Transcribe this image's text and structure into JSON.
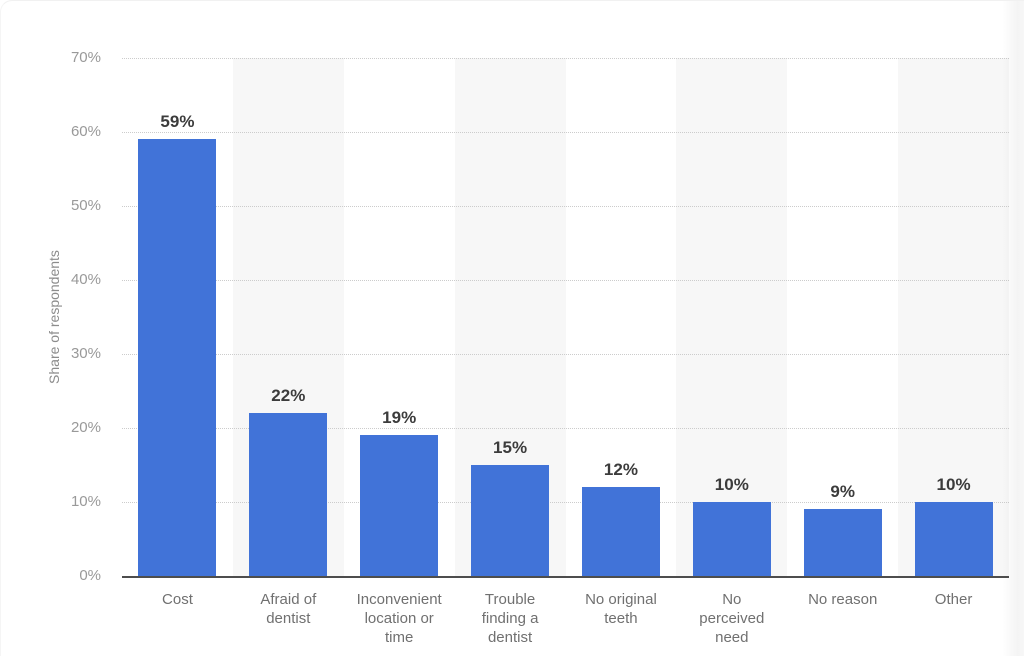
{
  "chart_data": {
    "type": "bar",
    "title": "",
    "categories": [
      "Cost",
      "Afraid of dentist",
      "Inconvenient location or time",
      "Trouble finding a dentist",
      "No original teeth",
      "No perceived need",
      "No reason",
      "Other"
    ],
    "values": [
      59,
      22,
      19,
      15,
      12,
      10,
      9,
      10
    ],
    "value_labels": [
      "59%",
      "22%",
      "19%",
      "15%",
      "12%",
      "10%",
      "9%",
      "10%"
    ],
    "xlabel": "",
    "ylabel": "Share of respondents",
    "ylim": [
      0,
      70
    ],
    "y_tick_step": 10,
    "y_ticks_top_down": [
      "70%",
      "60%",
      "50%",
      "40%",
      "30%",
      "20%",
      "10%",
      "0%"
    ],
    "grid": "horizontal-dotted",
    "legend": "none",
    "band_pattern": "alternating column stripes, odd columns shaded",
    "colors": {
      "bar": "#4173d8",
      "band": "#f7f7f7",
      "gridline": "#cccccc",
      "axis_line": "#4d4d4d",
      "y_tick_text": "#999999",
      "x_tick_text": "#707070",
      "value_label_text": "#3c3c3c",
      "axis_title_text": "#8c8c8c"
    }
  }
}
